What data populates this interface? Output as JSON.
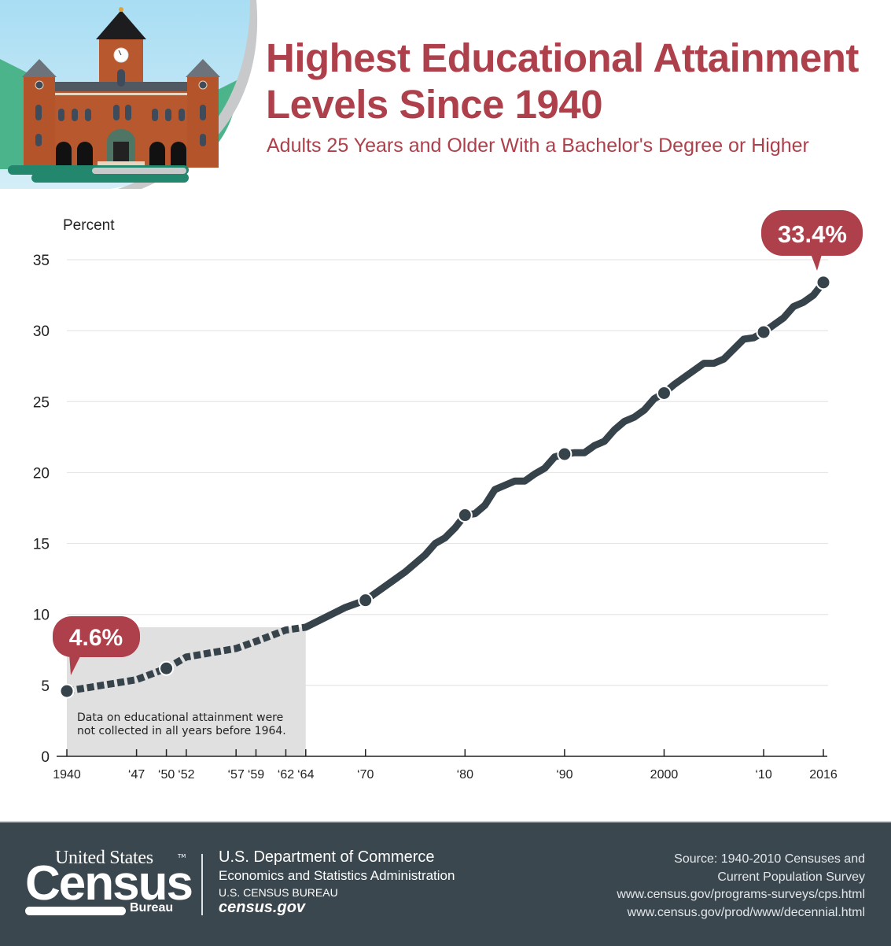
{
  "header": {
    "title_line1": "Highest Educational Attainment",
    "title_line2": "Levels Since 1940",
    "subtitle": "Adults 25 Years and Older With a Bachelor's Degree or Higher",
    "illustration": "school-building-icon"
  },
  "colors": {
    "accent": "#ad404b",
    "line": "#36434b",
    "shade": "#e0e0e0",
    "footer_bg": "#3a474e",
    "grid": "#e6e6e6"
  },
  "chart_data": {
    "type": "line",
    "title": "Highest Educational Attainment Levels Since 1940",
    "subtitle": "Adults 25 Years and Older With a Bachelor's Degree or Higher",
    "xlabel": "",
    "ylabel": "Percent",
    "ylim": [
      0,
      35
    ],
    "yticks": [
      0,
      5,
      10,
      15,
      20,
      25,
      30,
      35
    ],
    "xlim": [
      1940,
      2016
    ],
    "xticks": [
      1940,
      1947,
      1950,
      1952,
      1957,
      1959,
      1962,
      1964,
      1970,
      1980,
      1990,
      2000,
      2010,
      2016
    ],
    "xtick_labels": [
      "1940",
      "‘47",
      "‘50",
      "‘52",
      "‘57",
      "‘59",
      "‘62",
      "‘64",
      "‘70",
      "‘80",
      "‘90",
      "2000",
      "‘10",
      "2016"
    ],
    "grid": true,
    "legend": null,
    "series": [
      {
        "name": "Bachelor's degree or higher (percent)",
        "x": [
          1940,
          1947,
          1950,
          1952,
          1957,
          1959,
          1962,
          1964,
          1966,
          1968,
          1970,
          1972,
          1974,
          1976,
          1977,
          1978,
          1979,
          1980,
          1981,
          1982,
          1983,
          1984,
          1985,
          1986,
          1987,
          1988,
          1989,
          1990,
          1991,
          1992,
          1993,
          1994,
          1995,
          1996,
          1997,
          1998,
          1999,
          2000,
          2001,
          2002,
          2003,
          2004,
          2005,
          2006,
          2007,
          2008,
          2009,
          2010,
          2011,
          2012,
          2013,
          2014,
          2015,
          2016
        ],
        "values": [
          4.6,
          5.4,
          6.2,
          7.0,
          7.6,
          8.1,
          8.9,
          9.1,
          9.8,
          10.5,
          11.0,
          12.0,
          13.0,
          14.2,
          15.0,
          15.4,
          16.1,
          17.0,
          17.1,
          17.7,
          18.8,
          19.1,
          19.4,
          19.4,
          19.9,
          20.3,
          21.1,
          21.3,
          21.4,
          21.4,
          21.9,
          22.2,
          23.0,
          23.6,
          23.9,
          24.4,
          25.2,
          25.6,
          26.2,
          26.7,
          27.2,
          27.7,
          27.7,
          28.0,
          28.7,
          29.4,
          29.5,
          29.9,
          30.4,
          30.9,
          31.7,
          32.0,
          32.5,
          33.4
        ]
      }
    ],
    "markers": [
      1940,
      1950,
      1970,
      1980,
      1990,
      2000,
      2010,
      2016
    ],
    "dashed_before": 1964,
    "shaded_region": {
      "x0": 1940,
      "x1": 1964
    },
    "annotations": [
      {
        "x": 1940,
        "label": "4.6%"
      },
      {
        "x": 2016,
        "label": "33.4%"
      },
      {
        "x": 1952,
        "text_line1": "Data on educational attainment were",
        "text_line2": "not collected in all years before 1964."
      }
    ]
  },
  "chart_labels": {
    "y_title": "Percent",
    "start_callout": "4.6%",
    "end_callout": "33.4%",
    "note_line1": "Data on educational attainment were",
    "note_line2": "not collected in all years before 1964."
  },
  "footer": {
    "logo_top": "United States",
    "logo_tm": "TM",
    "logo_main": "Census",
    "logo_bottom": "Bureau",
    "dept_line1": "U.S. Department of Commerce",
    "dept_line2": "Economics and Statistics Administration",
    "dept_line3": "U.S. CENSUS BUREAU",
    "dept_line4": "census.gov",
    "source_lines": [
      "Source:  1940-2010 Censuses and",
      "Current Population Survey",
      "www.census.gov/programs-surveys/cps.html",
      "www.census.gov/prod/www/decennial.html"
    ]
  }
}
